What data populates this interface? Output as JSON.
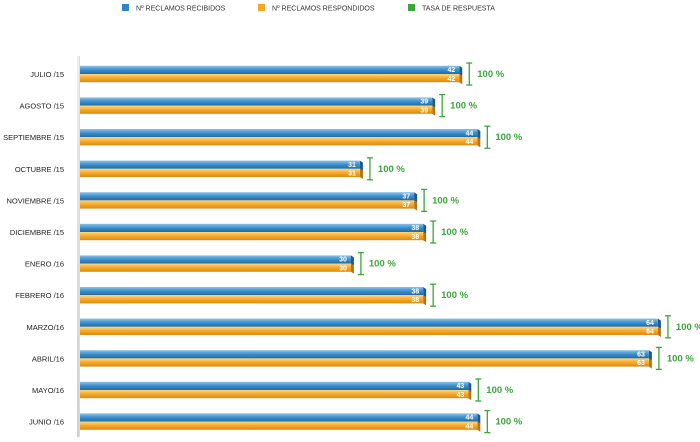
{
  "chart_data": {
    "type": "bar",
    "orientation": "horizontal",
    "title": "",
    "xlabel": "",
    "ylabel": "",
    "xlim": [
      0,
      64
    ],
    "grid": false,
    "legend_position": "top",
    "categories": [
      "JULIO /15",
      "AGOSTO /15",
      "SEPTIEMBRE /15",
      "OCTUBRE /15",
      "NOVIEMBRE /15",
      "DICIEMBRE /15",
      "ENERO /16",
      "FEBRERO /16",
      "MARZO/16",
      "ABRIL/16",
      "MAYO/16",
      "JUNIO /16"
    ],
    "series": [
      {
        "name": "Nº RECLAMOS RECIBIDOS",
        "color": "#2f86c6",
        "values": [
          42,
          39,
          44,
          31,
          37,
          38,
          30,
          38,
          64,
          63,
          43,
          44
        ]
      },
      {
        "name": "Nº RECLAMOS RESPONDIDOS",
        "color": "#f5a623",
        "values": [
          42,
          39,
          44,
          31,
          37,
          38,
          30,
          38,
          64,
          63,
          43,
          44
        ]
      },
      {
        "name": "TASA DE RESPUESTA",
        "color": "#3aa63a",
        "values": [
          "100 %",
          "100 %",
          "100 %",
          "100 %",
          "100 %",
          "100 %",
          "100 %",
          "100 %",
          "100 %",
          "100 %",
          "100 %",
          "100 %"
        ]
      }
    ]
  }
}
